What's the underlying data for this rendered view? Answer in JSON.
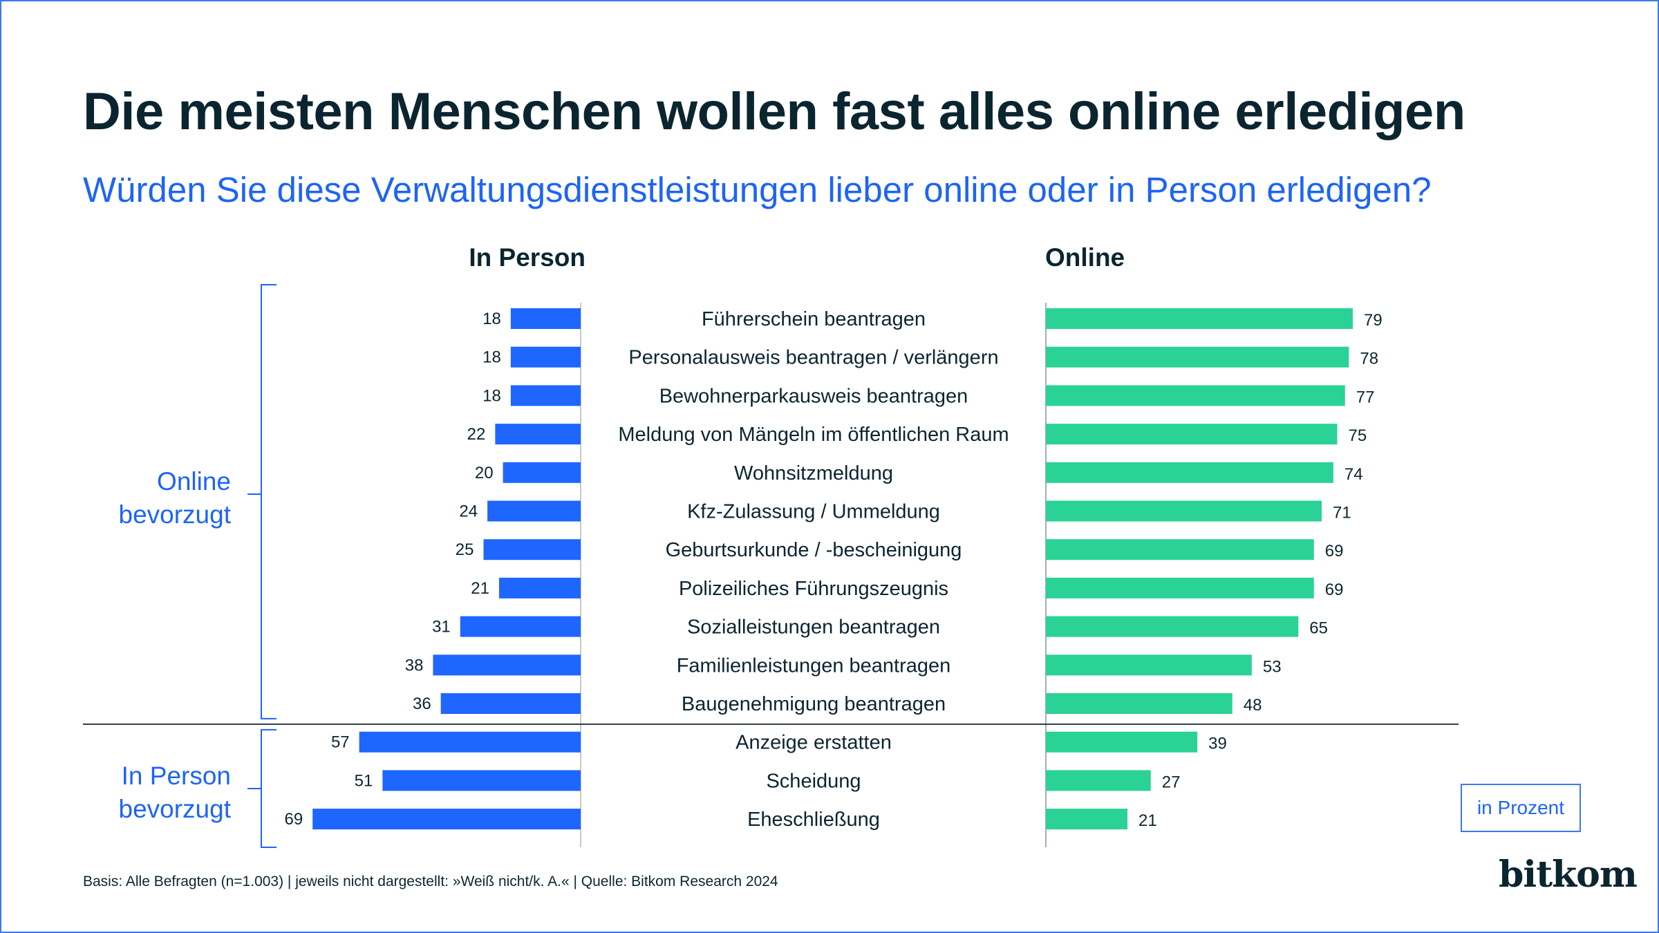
{
  "header": {
    "title": "Die meisten Menschen wollen fast alles online erledigen",
    "subtitle": "Würden Sie diese Verwaltungsdienstleistungen lieber online oder in Person erledigen?"
  },
  "colors": {
    "in_person": "#1e66ff",
    "online": "#2ad296",
    "accent_text": "#1e64f5",
    "dark_text": "#0b2530",
    "axis": "#c8c8c8",
    "separator": "#2a3a40"
  },
  "chart_data": {
    "type": "bar",
    "orientation": "horizontal-diverging",
    "title": "Die meisten Menschen wollen fast alles online erledigen",
    "subtitle": "Würden Sie diese Verwaltungsdienstleistungen lieber online oder in Person erledigen?",
    "unit": "in Prozent",
    "xlim": [
      0,
      100
    ],
    "grid": false,
    "categories": [
      "Führerschein beantragen",
      "Personalausweis beantragen / verlängern",
      "Bewohnerparkausweis beantragen",
      "Meldung von Mängeln im öffentlichen Raum",
      "Wohnsitzmeldung",
      "Kfz-Zulassung / Ummeldung",
      "Geburtsurkunde / -bescheinigung",
      "Polizeiliches Führungszeugnis",
      "Sozialleistungen beantragen",
      "Familienleistungen beantragen",
      "Baugenehmigung beantragen",
      "Anzeige erstatten",
      "Scheidung",
      "Eheschließung"
    ],
    "series": [
      {
        "name": "In Person",
        "side": "left",
        "values": [
          18,
          18,
          18,
          22,
          20,
          24,
          25,
          21,
          31,
          38,
          36,
          57,
          51,
          69
        ]
      },
      {
        "name": "Online",
        "side": "right",
        "values": [
          79,
          78,
          77,
          75,
          74,
          71,
          69,
          69,
          65,
          53,
          48,
          39,
          27,
          21
        ]
      }
    ],
    "groups": [
      {
        "label_line1": "Online",
        "label_line2": "bevorzugt",
        "first_index": 0,
        "last_index": 10
      },
      {
        "label_line1": "In Person",
        "label_line2": "bevorzugt",
        "first_index": 11,
        "last_index": 13
      }
    ]
  },
  "unit_label": "in Prozent",
  "footnote": "Basis: Alle Befragten (n=1.003) | jeweils nicht dargestellt: »Weiß nicht/k. A.« | Quelle: Bitkom Research 2024",
  "logo": {
    "text_before_dot": "b",
    "dot_char": "ı",
    "text_after_dot": "tkom"
  }
}
